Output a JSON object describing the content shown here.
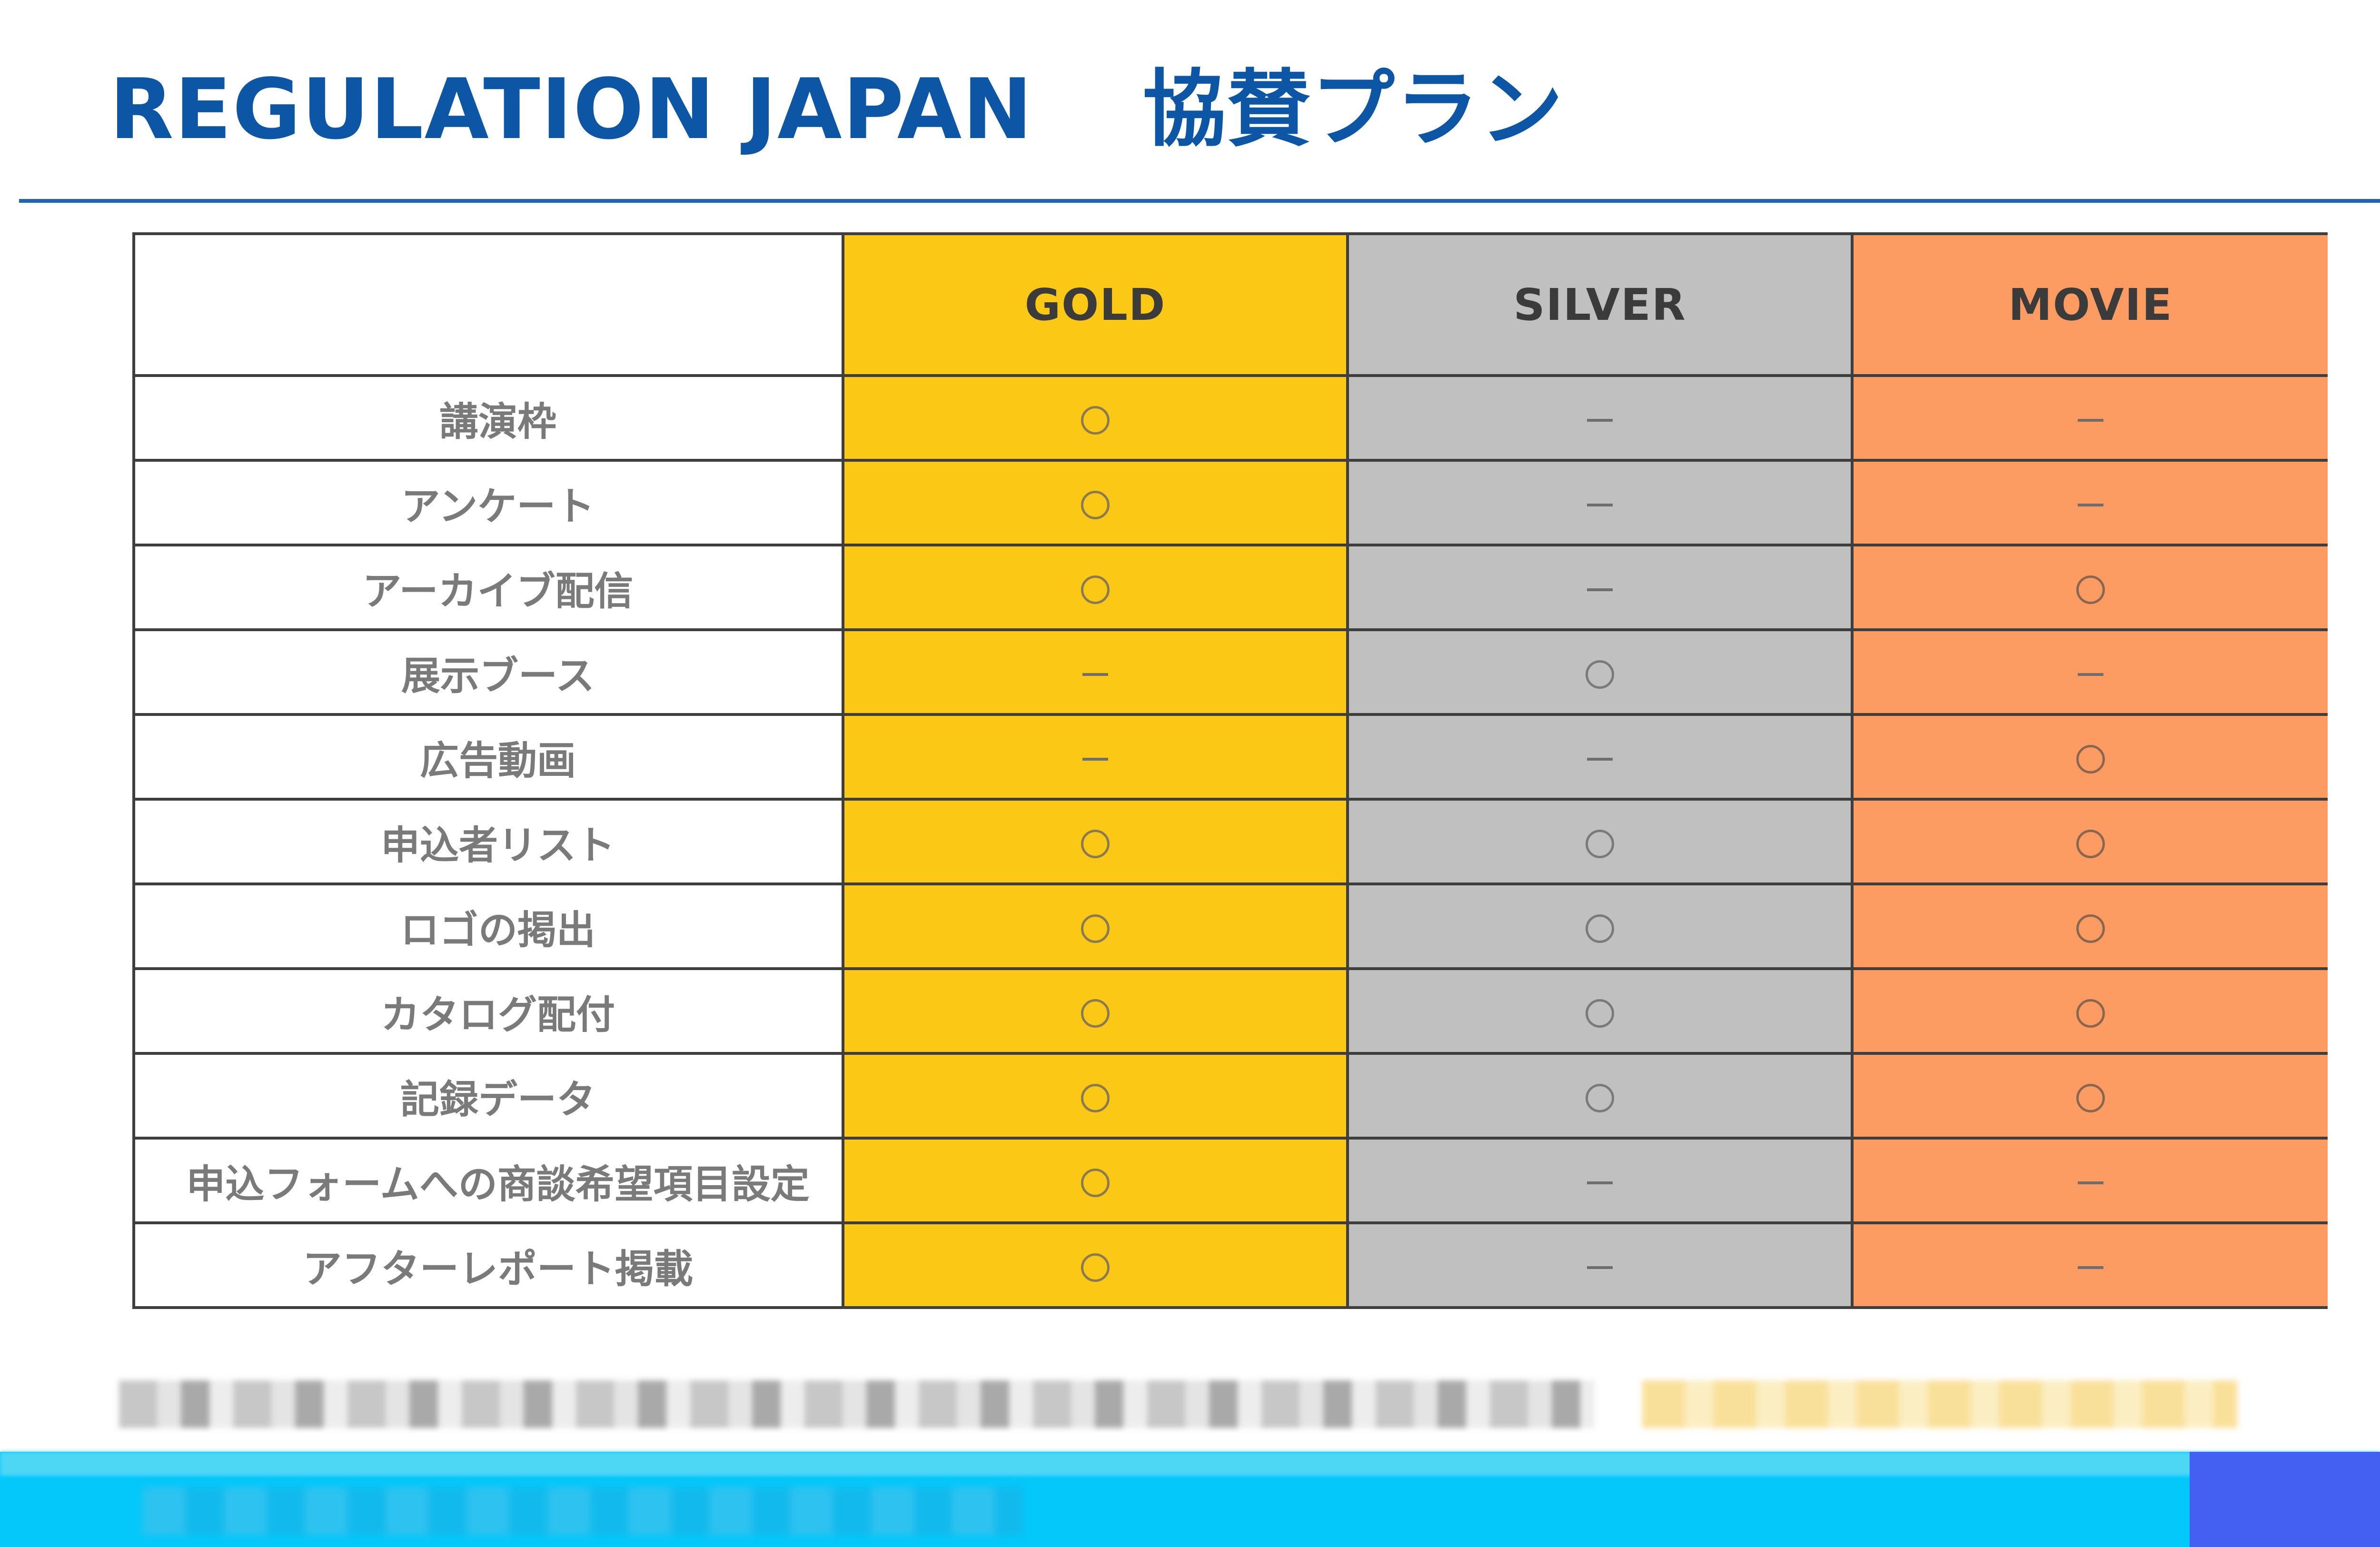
{
  "header": {
    "title_en": "REGULATION JAPAN",
    "title_jp": "協賛プラン"
  },
  "plans": [
    {
      "key": "gold",
      "name": "GOLD",
      "color": "#fbc815"
    },
    {
      "key": "silver",
      "name": "SILVER",
      "color": "#c0c0c0"
    },
    {
      "key": "movie",
      "name": "MOVIE",
      "color": "#fc9c62"
    }
  ],
  "features": [
    {
      "label": "講演枠",
      "gold": "○",
      "silver": "－",
      "movie": "－"
    },
    {
      "label": "アンケート",
      "gold": "○",
      "silver": "－",
      "movie": "－"
    },
    {
      "label": "アーカイブ配信",
      "gold": "○",
      "silver": "－",
      "movie": "○"
    },
    {
      "label": "展示ブース",
      "gold": "－",
      "silver": "○",
      "movie": "－"
    },
    {
      "label": "広告動画",
      "gold": "－",
      "silver": "－",
      "movie": "○"
    },
    {
      "label": "申込者リスト",
      "gold": "○",
      "silver": "○",
      "movie": "○"
    },
    {
      "label": "ロゴの掲出",
      "gold": "○",
      "silver": "○",
      "movie": "○"
    },
    {
      "label": "カタログ配付",
      "gold": "○",
      "silver": "○",
      "movie": "○"
    },
    {
      "label": "記録データ",
      "gold": "○",
      "silver": "○",
      "movie": "○"
    },
    {
      "label": "申込フォームへの商談希望項目設定",
      "gold": "○",
      "silver": "－",
      "movie": "－"
    },
    {
      "label": "アフターレポート掲載",
      "gold": "○",
      "silver": "－",
      "movie": "－"
    }
  ],
  "colors": {
    "title": "#0d56a6",
    "rule": "#1f64b0",
    "footer_band": "#04c8fa",
    "footer_corner": "#4460f2"
  }
}
